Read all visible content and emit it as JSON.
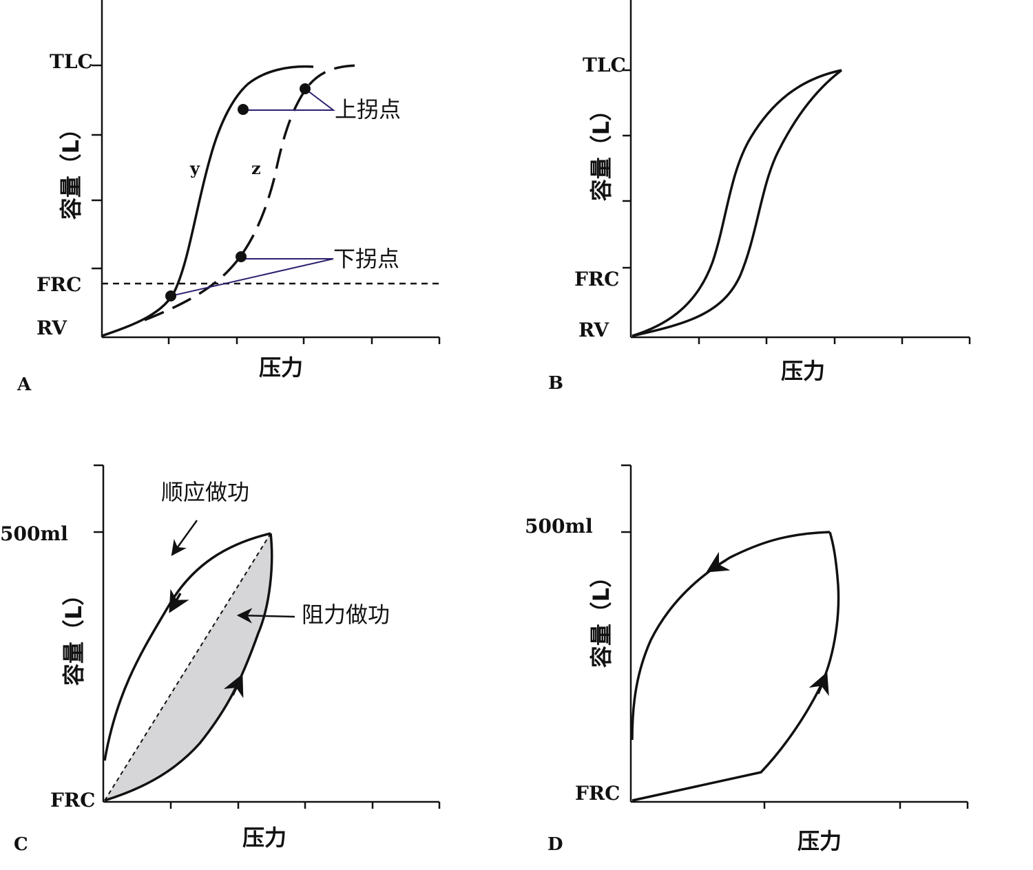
{
  "panels": {
    "A": {
      "letter": "A",
      "x_axis_label": "压力",
      "y_axis_label": "容量（L）",
      "y_levels": [
        "TLC",
        "FRC",
        "RV"
      ],
      "curve_labels": [
        "y",
        "z"
      ],
      "annotations": [
        "上拐点",
        "下拐点"
      ]
    },
    "B": {
      "letter": "B",
      "x_axis_label": "压力",
      "y_axis_label": "容量（L）",
      "y_levels": [
        "TLC",
        "FRC",
        "RV"
      ]
    },
    "C": {
      "letter": "C",
      "x_axis_label": "压力",
      "y_axis_label": "容量（L）",
      "y_levels": [
        "500ml",
        "FRC"
      ],
      "annotations": [
        "顺应做功",
        "阻力做功"
      ]
    },
    "D": {
      "letter": "D",
      "x_axis_label": "压力",
      "y_axis_label": "容量（L）",
      "y_levels": [
        "500ml",
        "FRC"
      ]
    }
  },
  "colors": {
    "curve": "#111111",
    "pointer_line": "#2a1f6e",
    "shaded_area": "#d6d6d8"
  }
}
